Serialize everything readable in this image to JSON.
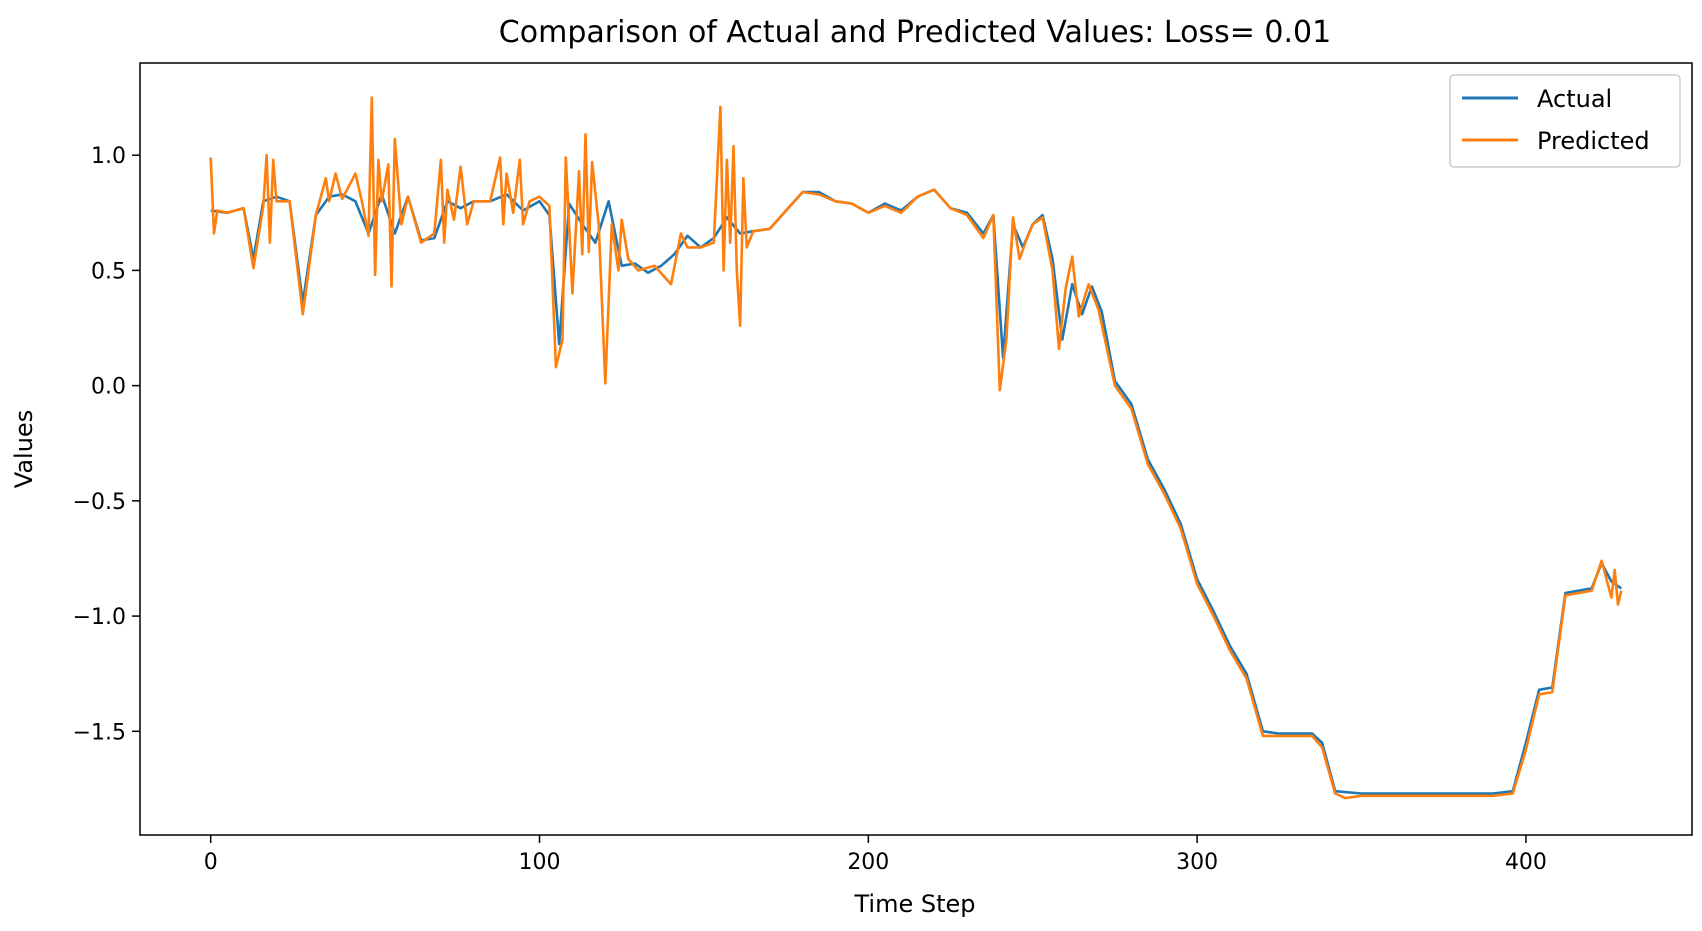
{
  "chart_data": {
    "type": "line",
    "title": "Comparison of Actual and Predicted Values: Loss= 0.01",
    "xlabel": "Time Step",
    "ylabel": "Values",
    "xlim": [
      -21.5,
      450.5
    ],
    "ylim": [
      -1.95,
      1.4
    ],
    "x_ticks": [
      0,
      100,
      200,
      300,
      400
    ],
    "x_tick_labels": [
      "0",
      "100",
      "200",
      "300",
      "400"
    ],
    "y_ticks": [
      1.0,
      0.5,
      0.0,
      -0.5,
      -1.0,
      -1.5
    ],
    "y_tick_labels": [
      "1.0",
      "0.5",
      "0.0",
      "−0.5",
      "−1.0",
      "−1.5"
    ],
    "grid": false,
    "legend": "top-right",
    "series": [
      {
        "name": "Actual",
        "color": "#1f77b4",
        "points": [
          [
            0,
            0.76
          ],
          [
            5,
            0.75
          ],
          [
            10,
            0.77
          ],
          [
            13,
            0.55
          ],
          [
            16,
            0.8
          ],
          [
            20,
            0.82
          ],
          [
            24,
            0.8
          ],
          [
            28,
            0.36
          ],
          [
            32,
            0.74
          ],
          [
            36,
            0.82
          ],
          [
            40,
            0.83
          ],
          [
            44,
            0.8
          ],
          [
            48,
            0.66
          ],
          [
            52,
            0.83
          ],
          [
            56,
            0.66
          ],
          [
            60,
            0.82
          ],
          [
            64,
            0.63
          ],
          [
            68,
            0.64
          ],
          [
            72,
            0.8
          ],
          [
            76,
            0.77
          ],
          [
            80,
            0.8
          ],
          [
            85,
            0.8
          ],
          [
            90,
            0.83
          ],
          [
            95,
            0.76
          ],
          [
            100,
            0.8
          ],
          [
            103,
            0.74
          ],
          [
            106,
            0.18
          ],
          [
            109,
            0.79
          ],
          [
            113,
            0.7
          ],
          [
            117,
            0.62
          ],
          [
            121,
            0.8
          ],
          [
            125,
            0.52
          ],
          [
            129,
            0.53
          ],
          [
            133,
            0.49
          ],
          [
            137,
            0.52
          ],
          [
            141,
            0.57
          ],
          [
            145,
            0.65
          ],
          [
            149,
            0.6
          ],
          [
            153,
            0.64
          ],
          [
            157,
            0.73
          ],
          [
            161,
            0.66
          ],
          [
            165,
            0.67
          ],
          [
            170,
            0.68
          ],
          [
            175,
            0.76
          ],
          [
            180,
            0.84
          ],
          [
            185,
            0.84
          ],
          [
            190,
            0.8
          ],
          [
            195,
            0.79
          ],
          [
            200,
            0.75
          ],
          [
            205,
            0.79
          ],
          [
            210,
            0.76
          ],
          [
            215,
            0.82
          ],
          [
            220,
            0.85
          ],
          [
            225,
            0.77
          ],
          [
            230,
            0.75
          ],
          [
            235,
            0.66
          ],
          [
            238,
            0.74
          ],
          [
            241,
            0.12
          ],
          [
            244,
            0.7
          ],
          [
            247,
            0.6
          ],
          [
            250,
            0.7
          ],
          [
            253,
            0.74
          ],
          [
            256,
            0.55
          ],
          [
            259,
            0.2
          ],
          [
            262,
            0.44
          ],
          [
            265,
            0.31
          ],
          [
            268,
            0.43
          ],
          [
            271,
            0.32
          ],
          [
            275,
            0.02
          ],
          [
            280,
            -0.08
          ],
          [
            285,
            -0.32
          ],
          [
            290,
            -0.45
          ],
          [
            295,
            -0.6
          ],
          [
            300,
            -0.84
          ],
          [
            305,
            -0.98
          ],
          [
            310,
            -1.13
          ],
          [
            315,
            -1.25
          ],
          [
            320,
            -1.5
          ],
          [
            325,
            -1.51
          ],
          [
            330,
            -1.51
          ],
          [
            335,
            -1.51
          ],
          [
            338,
            -1.55
          ],
          [
            342,
            -1.76
          ],
          [
            350,
            -1.77
          ],
          [
            360,
            -1.77
          ],
          [
            370,
            -1.77
          ],
          [
            380,
            -1.77
          ],
          [
            390,
            -1.77
          ],
          [
            396,
            -1.76
          ],
          [
            400,
            -1.55
          ],
          [
            404,
            -1.32
          ],
          [
            408,
            -1.31
          ],
          [
            412,
            -0.9
          ],
          [
            416,
            -0.89
          ],
          [
            420,
            -0.88
          ],
          [
            423,
            -0.77
          ],
          [
            426,
            -0.85
          ],
          [
            429,
            -0.88
          ]
        ]
      },
      {
        "name": "Predicted",
        "color": "#ff7f0e",
        "points": [
          [
            0,
            0.99
          ],
          [
            1,
            0.66
          ],
          [
            2,
            0.76
          ],
          [
            5,
            0.75
          ],
          [
            10,
            0.77
          ],
          [
            13,
            0.51
          ],
          [
            16,
            0.78
          ],
          [
            17,
            1.0
          ],
          [
            18,
            0.62
          ],
          [
            19,
            0.98
          ],
          [
            20,
            0.8
          ],
          [
            24,
            0.8
          ],
          [
            28,
            0.31
          ],
          [
            32,
            0.74
          ],
          [
            35,
            0.9
          ],
          [
            36,
            0.8
          ],
          [
            38,
            0.92
          ],
          [
            40,
            0.81
          ],
          [
            44,
            0.92
          ],
          [
            46,
            0.8
          ],
          [
            48,
            0.65
          ],
          [
            49,
            1.25
          ],
          [
            50,
            0.48
          ],
          [
            51,
            0.98
          ],
          [
            52,
            0.8
          ],
          [
            54,
            0.96
          ],
          [
            55,
            0.43
          ],
          [
            56,
            1.07
          ],
          [
            58,
            0.7
          ],
          [
            60,
            0.82
          ],
          [
            64,
            0.62
          ],
          [
            68,
            0.66
          ],
          [
            70,
            0.98
          ],
          [
            71,
            0.62
          ],
          [
            72,
            0.85
          ],
          [
            74,
            0.72
          ],
          [
            76,
            0.95
          ],
          [
            78,
            0.7
          ],
          [
            80,
            0.8
          ],
          [
            85,
            0.8
          ],
          [
            88,
            0.99
          ],
          [
            89,
            0.7
          ],
          [
            90,
            0.92
          ],
          [
            92,
            0.75
          ],
          [
            94,
            0.98
          ],
          [
            95,
            0.7
          ],
          [
            97,
            0.8
          ],
          [
            100,
            0.82
          ],
          [
            103,
            0.78
          ],
          [
            105,
            0.08
          ],
          [
            107,
            0.2
          ],
          [
            108,
            0.99
          ],
          [
            110,
            0.4
          ],
          [
            112,
            0.93
          ],
          [
            113,
            0.57
          ],
          [
            114,
            1.09
          ],
          [
            115,
            0.58
          ],
          [
            116,
            0.97
          ],
          [
            118,
            0.7
          ],
          [
            120,
            0.01
          ],
          [
            122,
            0.7
          ],
          [
            124,
            0.5
          ],
          [
            125,
            0.72
          ],
          [
            127,
            0.55
          ],
          [
            130,
            0.5
          ],
          [
            135,
            0.52
          ],
          [
            140,
            0.44
          ],
          [
            143,
            0.66
          ],
          [
            145,
            0.6
          ],
          [
            149,
            0.6
          ],
          [
            153,
            0.62
          ],
          [
            155,
            1.21
          ],
          [
            156,
            0.5
          ],
          [
            157,
            0.98
          ],
          [
            158,
            0.62
          ],
          [
            159,
            1.04
          ],
          [
            160,
            0.5
          ],
          [
            161,
            0.26
          ],
          [
            162,
            0.9
          ],
          [
            163,
            0.6
          ],
          [
            165,
            0.67
          ],
          [
            170,
            0.68
          ],
          [
            175,
            0.76
          ],
          [
            180,
            0.84
          ],
          [
            185,
            0.83
          ],
          [
            190,
            0.8
          ],
          [
            195,
            0.79
          ],
          [
            200,
            0.75
          ],
          [
            205,
            0.78
          ],
          [
            210,
            0.75
          ],
          [
            215,
            0.82
          ],
          [
            220,
            0.85
          ],
          [
            225,
            0.77
          ],
          [
            230,
            0.74
          ],
          [
            235,
            0.64
          ],
          [
            238,
            0.74
          ],
          [
            240,
            -0.02
          ],
          [
            242,
            0.2
          ],
          [
            244,
            0.73
          ],
          [
            246,
            0.55
          ],
          [
            248,
            0.63
          ],
          [
            250,
            0.7
          ],
          [
            253,
            0.73
          ],
          [
            256,
            0.5
          ],
          [
            258,
            0.16
          ],
          [
            260,
            0.42
          ],
          [
            262,
            0.56
          ],
          [
            264,
            0.3
          ],
          [
            267,
            0.44
          ],
          [
            270,
            0.33
          ],
          [
            275,
            0.0
          ],
          [
            280,
            -0.1
          ],
          [
            285,
            -0.34
          ],
          [
            290,
            -0.47
          ],
          [
            295,
            -0.62
          ],
          [
            300,
            -0.86
          ],
          [
            305,
            -1.0
          ],
          [
            310,
            -1.15
          ],
          [
            315,
            -1.27
          ],
          [
            320,
            -1.52
          ],
          [
            325,
            -1.52
          ],
          [
            330,
            -1.52
          ],
          [
            335,
            -1.52
          ],
          [
            338,
            -1.57
          ],
          [
            342,
            -1.77
          ],
          [
            345,
            -1.79
          ],
          [
            350,
            -1.78
          ],
          [
            360,
            -1.78
          ],
          [
            370,
            -1.78
          ],
          [
            380,
            -1.78
          ],
          [
            390,
            -1.78
          ],
          [
            396,
            -1.77
          ],
          [
            400,
            -1.58
          ],
          [
            404,
            -1.34
          ],
          [
            408,
            -1.33
          ],
          [
            412,
            -0.91
          ],
          [
            416,
            -0.9
          ],
          [
            420,
            -0.89
          ],
          [
            423,
            -0.76
          ],
          [
            426,
            -0.92
          ],
          [
            427,
            -0.8
          ],
          [
            428,
            -0.95
          ],
          [
            429,
            -0.89
          ]
        ]
      }
    ]
  }
}
